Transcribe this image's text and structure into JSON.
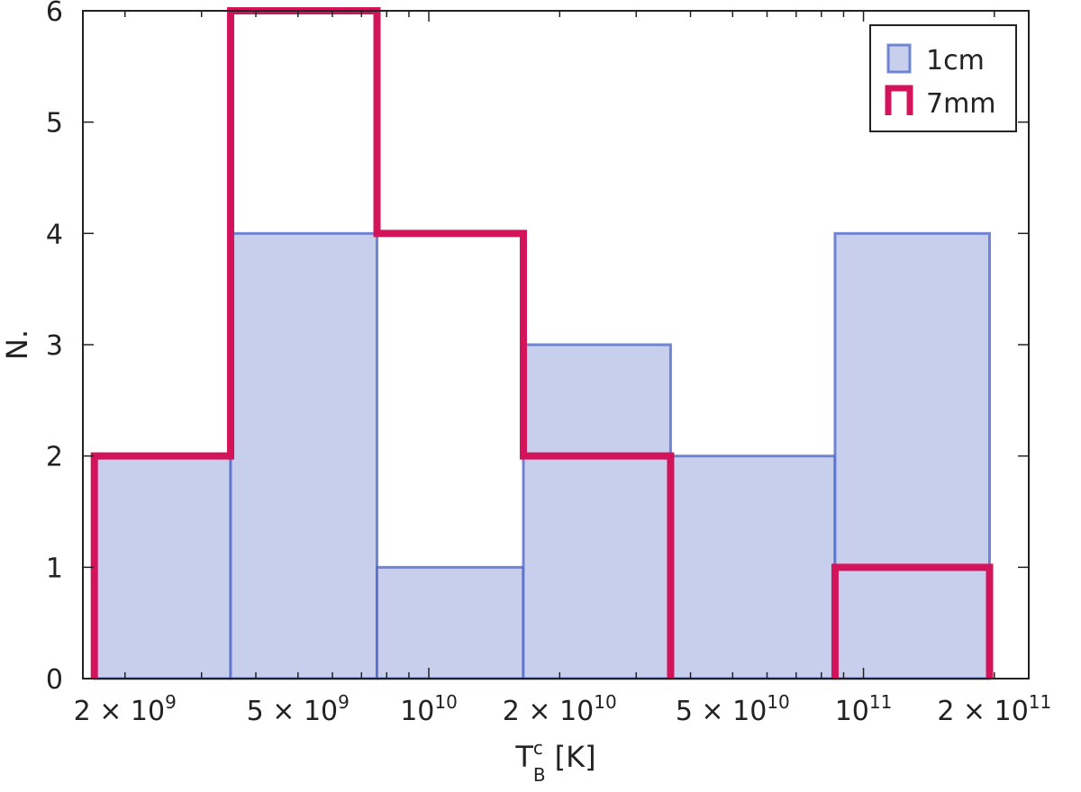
{
  "chart_data": {
    "type": "bar",
    "subtype": "histogram",
    "xscale": "log",
    "xlim": [
      1600000000.0,
      240000000000.0
    ],
    "ylim": [
      0,
      6
    ],
    "bin_edges": [
      1700000000.0,
      3500000000.0,
      7600000000.0,
      16500000000.0,
      36000000000.0,
      86000000000.0,
      195000000000.0
    ],
    "series": [
      {
        "name": "1cm",
        "style": "filled",
        "color": "#4a64c8",
        "fill": "#c8cfec",
        "values": [
          2,
          4,
          1,
          3,
          2,
          4
        ]
      },
      {
        "name": "7mm",
        "style": "step",
        "color": "#d4145a",
        "values": [
          2,
          6,
          4,
          2,
          0,
          1
        ]
      }
    ],
    "x_ticks": [
      {
        "value": 2000000000.0,
        "mantissa": "2",
        "exponent": "9"
      },
      {
        "value": 5000000000.0,
        "mantissa": "5",
        "exponent": "9"
      },
      {
        "value": 10000000000.0,
        "mantissa": "",
        "exponent": "10"
      },
      {
        "value": 20000000000.0,
        "mantissa": "2",
        "exponent": "10"
      },
      {
        "value": 50000000000.0,
        "mantissa": "5",
        "exponent": "10"
      },
      {
        "value": 100000000000.0,
        "mantissa": "",
        "exponent": "11"
      },
      {
        "value": 200000000000.0,
        "mantissa": "2",
        "exponent": "11"
      }
    ],
    "y_ticks": [
      "0",
      "1",
      "2",
      "3",
      "4",
      "5",
      "6"
    ],
    "xlabel": {
      "main": "T",
      "sup": "c",
      "sub": "B",
      "unit": "[K]"
    },
    "ylabel": "N.",
    "legend_position": "top-right",
    "grid": false
  }
}
